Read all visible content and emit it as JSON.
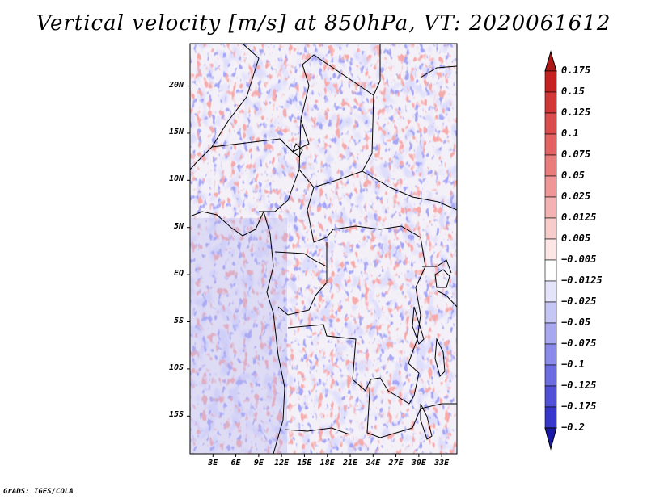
{
  "title": "Vertical velocity [m/s] at 850hPa, VT: 2020061612",
  "credit": "GrADS: IGES/COLA",
  "map": {
    "lon_range": [
      0,
      35
    ],
    "lat_range": [
      -19,
      24.5
    ],
    "lat_labels": [
      {
        "lat": 20,
        "text": "20N"
      },
      {
        "lat": 15,
        "text": "15N"
      },
      {
        "lat": 10,
        "text": "10N"
      },
      {
        "lat": 5,
        "text": "5N"
      },
      {
        "lat": 0,
        "text": "EQ"
      },
      {
        "lat": -5,
        "text": "5S"
      },
      {
        "lat": -10,
        "text": "10S"
      },
      {
        "lat": -15,
        "text": "15S"
      }
    ],
    "lon_labels": [
      {
        "lon": 3,
        "text": "3E"
      },
      {
        "lon": 6,
        "text": "6E"
      },
      {
        "lon": 9,
        "text": "9E"
      },
      {
        "lon": 12,
        "text": "12E"
      },
      {
        "lon": 15,
        "text": "15E"
      },
      {
        "lon": 18,
        "text": "18E"
      },
      {
        "lon": 21,
        "text": "21E"
      },
      {
        "lon": 24,
        "text": "24E"
      },
      {
        "lon": 27,
        "text": "27E"
      },
      {
        "lon": 30,
        "text": "30E"
      },
      {
        "lon": 33,
        "text": "33E"
      }
    ]
  },
  "colorbar": {
    "levels": [
      {
        "label": "0.175",
        "color": "#c62020"
      },
      {
        "label": "0.15",
        "color": "#d23636"
      },
      {
        "label": "0.125",
        "color": "#dc4c4c"
      },
      {
        "label": "0.1",
        "color": "#e46262"
      },
      {
        "label": "0.075",
        "color": "#ea7c7c"
      },
      {
        "label": "0.05",
        "color": "#f09696"
      },
      {
        "label": "0.025",
        "color": "#f5b2b2"
      },
      {
        "label": "0.0125",
        "color": "#f9cccc"
      },
      {
        "label": "0.005",
        "color": "#fce6e6"
      },
      {
        "label": "−0.005",
        "color": "#ffffff"
      },
      {
        "label": "−0.0125",
        "color": "#e4e4fb"
      },
      {
        "label": "−0.025",
        "color": "#c6c6f6"
      },
      {
        "label": "−0.05",
        "color": "#a8a8f0"
      },
      {
        "label": "−0.075",
        "color": "#8a8aea"
      },
      {
        "label": "−0.1",
        "color": "#6c6ce2"
      },
      {
        "label": "−0.125",
        "color": "#5050d8"
      },
      {
        "label": "−0.175",
        "color": "#3636cc"
      },
      {
        "label": "−0.2",
        "color": "#2222bb"
      }
    ],
    "top_color": "#b01818",
    "bottom_color": "#1a1aa8"
  }
}
